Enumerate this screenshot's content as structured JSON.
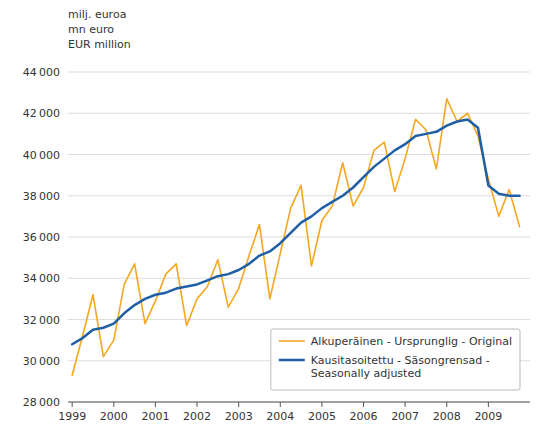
{
  "chart_data": {
    "type": "line",
    "ylabel": [
      "milj. euroa",
      "mn euro",
      "EUR million"
    ],
    "x": [
      1999.0,
      1999.25,
      1999.5,
      1999.75,
      2000.0,
      2000.25,
      2000.5,
      2000.75,
      2001.0,
      2001.25,
      2001.5,
      2001.75,
      2002.0,
      2002.25,
      2002.5,
      2002.75,
      2003.0,
      2003.25,
      2003.5,
      2003.75,
      2004.0,
      2004.25,
      2004.5,
      2004.75,
      2005.0,
      2005.25,
      2005.5,
      2005.75,
      2006.0,
      2006.25,
      2006.5,
      2006.75,
      2007.0,
      2007.25,
      2007.5,
      2007.75,
      2008.0,
      2008.25,
      2008.5,
      2008.75,
      2009.0,
      2009.25,
      2009.5,
      2009.75
    ],
    "series": [
      {
        "name": "Alkuperäinen - Ursprunglig - Original",
        "color": "#F5A623",
        "values": [
          29300,
          31200,
          33200,
          30200,
          31000,
          33700,
          34700,
          31800,
          32900,
          34200,
          34700,
          31700,
          33000,
          33600,
          34900,
          32600,
          33500,
          35100,
          36600,
          33000,
          35200,
          37400,
          38500,
          34600,
          36800,
          37500,
          39600,
          37500,
          38400,
          40200,
          40600,
          38200,
          39800,
          41700,
          41200,
          39300,
          42700,
          41600,
          42000,
          40900,
          38800,
          37000,
          38300,
          36500
        ]
      },
      {
        "name": "Kausitasoitettu - Säsongrensad -\nSeasonally adjusted",
        "color": "#1F5FA6",
        "values": [
          30800,
          31100,
          31500,
          31600,
          31800,
          32300,
          32700,
          33000,
          33200,
          33300,
          33500,
          33600,
          33700,
          33900,
          34100,
          34200,
          34400,
          34700,
          35100,
          35300,
          35700,
          36200,
          36700,
          37000,
          37400,
          37700,
          38000,
          38400,
          38900,
          39400,
          39800,
          40200,
          40500,
          40900,
          41000,
          41100,
          41400,
          41600,
          41700,
          41300,
          38500,
          38100,
          38000,
          38000
        ]
      }
    ],
    "xlim": [
      1998.9,
      2010.0
    ],
    "xticks": [
      1999,
      2000,
      2001,
      2002,
      2003,
      2004,
      2005,
      2006,
      2007,
      2008,
      2009
    ],
    "ylim": [
      28000,
      44000
    ],
    "yticks": [
      {
        "value": 28000,
        "label": "28 000"
      },
      {
        "value": 30000,
        "label": "30 000"
      },
      {
        "value": 32000,
        "label": "32 000"
      },
      {
        "value": 34000,
        "label": "34 000"
      },
      {
        "value": 36000,
        "label": "36 000"
      },
      {
        "value": 38000,
        "label": "38 000"
      },
      {
        "value": 40000,
        "label": "40 000"
      },
      {
        "value": 42000,
        "label": "42 000"
      },
      {
        "value": 44000,
        "label": "44 000"
      }
    ],
    "grid": true,
    "legend": "lower right"
  }
}
